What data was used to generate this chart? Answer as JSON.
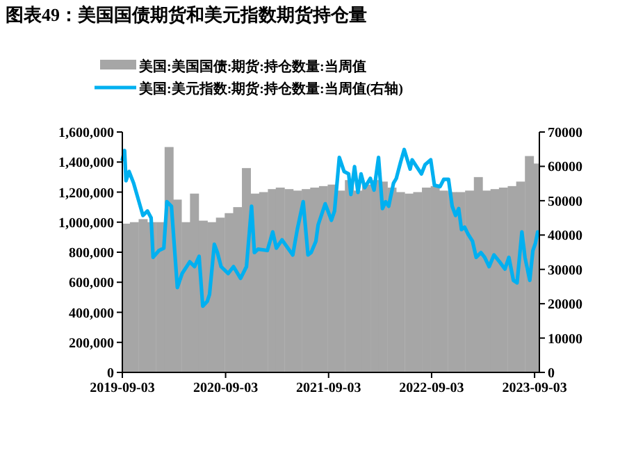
{
  "chart_data": {
    "type": "bar",
    "title": "图表49：美国国债期货和美元指数期货持仓量",
    "legend": "top",
    "grid": false,
    "xlim": [
      "2019-09-03",
      "2023-09-20"
    ],
    "xticks": [
      "2019-09-03",
      "2020-09-03",
      "2021-09-03",
      "2022-09-03",
      "2023-09-03"
    ],
    "ylim": [
      0,
      1600000
    ],
    "yticks": [
      {
        "value": 0,
        "label": "0"
      },
      {
        "value": 200000,
        "label": "200,000"
      },
      {
        "value": 400000,
        "label": "400,000"
      },
      {
        "value": 600000,
        "label": "600,000"
      },
      {
        "value": 800000,
        "label": "800,000"
      },
      {
        "value": 1000000,
        "label": "1,000,000"
      },
      {
        "value": 1200000,
        "label": "1,200,000"
      },
      {
        "value": 1400000,
        "label": "1,400,000"
      },
      {
        "value": 1600000,
        "label": "1,600,000"
      }
    ],
    "y2lim": [
      0,
      70000
    ],
    "y2ticks": [
      0,
      10000,
      20000,
      30000,
      40000,
      50000,
      60000,
      70000
    ],
    "series": [
      {
        "name": "美国:美国国债:期货:持仓数量:当周值",
        "color": "#a6a6a6",
        "x": [
          "2019-09-15",
          "2019-10-15",
          "2019-11-15",
          "2019-12-15",
          "2020-01-15",
          "2020-02-15",
          "2020-03-15",
          "2020-04-15",
          "2020-05-15",
          "2020-06-15",
          "2020-07-15",
          "2020-08-15",
          "2020-09-15",
          "2020-10-15",
          "2020-11-15",
          "2020-12-15",
          "2021-01-15",
          "2021-02-15",
          "2021-03-15",
          "2021-04-15",
          "2021-05-15",
          "2021-06-15",
          "2021-07-15",
          "2021-08-15",
          "2021-09-15",
          "2021-10-15",
          "2021-11-15",
          "2021-12-15",
          "2022-01-15",
          "2022-02-15",
          "2022-03-15",
          "2022-04-15",
          "2022-05-15",
          "2022-06-15",
          "2022-07-15",
          "2022-08-15",
          "2022-09-15",
          "2022-10-15",
          "2022-11-15",
          "2022-12-15",
          "2023-01-15",
          "2023-02-15",
          "2023-03-15",
          "2023-04-15",
          "2023-05-15",
          "2023-06-15",
          "2023-07-15",
          "2023-08-15",
          "2023-09-10"
        ],
        "values": [
          990000,
          1000000,
          1020000,
          1000000,
          1000000,
          1500000,
          1150000,
          1000000,
          1190000,
          1010000,
          1000000,
          1030000,
          1060000,
          1100000,
          1360000,
          1190000,
          1200000,
          1220000,
          1230000,
          1220000,
          1210000,
          1220000,
          1230000,
          1240000,
          1250000,
          1210000,
          1280000,
          1210000,
          1250000,
          1280000,
          1270000,
          1230000,
          1200000,
          1190000,
          1200000,
          1230000,
          1240000,
          1210000,
          1200000,
          1200000,
          1210000,
          1300000,
          1210000,
          1220000,
          1230000,
          1240000,
          1270000,
          1440000,
          1390000
        ]
      },
      {
        "name": "美国:美元指数:期货:持仓数量:当周值(右轴)",
        "type": "line",
        "axis": "y2",
        "color": "#00b0f0",
        "x": [
          "2019-09-03",
          "2019-09-11",
          "2019-09-16",
          "2019-09-27",
          "2019-10-13",
          "2019-11-15",
          "2019-12-01",
          "2019-12-14",
          "2019-12-21",
          "2020-01-11",
          "2020-01-28",
          "2020-02-08",
          "2020-02-24",
          "2020-03-16",
          "2020-04-02",
          "2020-04-29",
          "2020-05-16",
          "2020-06-01",
          "2020-06-14",
          "2020-06-30",
          "2020-07-08",
          "2020-07-25",
          "2020-08-05",
          "2020-08-18",
          "2020-09-12",
          "2020-10-01",
          "2020-10-26",
          "2020-11-16",
          "2020-12-04",
          "2020-12-14",
          "2020-12-27",
          "2021-01-29",
          "2021-02-17",
          "2021-03-02",
          "2021-03-22",
          "2021-04-29",
          "2021-05-15",
          "2021-06-05",
          "2021-06-22",
          "2021-07-03",
          "2021-07-20",
          "2021-07-28",
          "2021-08-22",
          "2021-09-13",
          "2021-09-24",
          "2021-10-11",
          "2021-10-28",
          "2021-11-13",
          "2021-11-21",
          "2021-12-04",
          "2021-12-16",
          "2021-12-27",
          "2022-01-09",
          "2022-01-29",
          "2022-02-11",
          "2022-02-27",
          "2022-03-13",
          "2022-03-24",
          "2022-04-04",
          "2022-04-21",
          "2022-05-01",
          "2022-05-16",
          "2022-05-29",
          "2022-06-09",
          "2022-06-19",
          "2022-06-26",
          "2022-07-12",
          "2022-07-29",
          "2022-08-11",
          "2022-08-31",
          "2022-09-13",
          "2022-10-03",
          "2022-10-16",
          "2022-11-02",
          "2022-11-15",
          "2022-11-27",
          "2022-12-08",
          "2022-12-18",
          "2022-12-29",
          "2023-01-10",
          "2023-01-26",
          "2023-02-08",
          "2023-02-25",
          "2023-03-10",
          "2023-03-26",
          "2023-04-12",
          "2023-05-02",
          "2023-05-21",
          "2023-06-04",
          "2023-06-20",
          "2023-07-03",
          "2023-07-20",
          "2023-07-31",
          "2023-08-17",
          "2023-08-28",
          "2023-09-06",
          "2023-09-14"
        ],
        "values": [
          62000,
          64600,
          55800,
          58500,
          55100,
          45700,
          47000,
          45000,
          33500,
          35500,
          36200,
          49700,
          48400,
          24700,
          28800,
          32200,
          30800,
          33800,
          19300,
          20700,
          22700,
          37300,
          34900,
          30800,
          28800,
          30800,
          27400,
          30800,
          48400,
          34900,
          35900,
          35500,
          40900,
          36200,
          38600,
          34200,
          41600,
          49700,
          34200,
          34900,
          38200,
          43000,
          49100,
          44300,
          47000,
          62600,
          58500,
          57800,
          51800,
          59900,
          52400,
          57800,
          53800,
          56500,
          53100,
          62600,
          47700,
          49700,
          48400,
          55100,
          56500,
          61200,
          64900,
          61900,
          59200,
          61900,
          59900,
          57800,
          60500,
          61900,
          54500,
          54100,
          56200,
          56200,
          48400,
          45700,
          47700,
          41600,
          42300,
          40300,
          38200,
          33500,
          34900,
          33500,
          30800,
          34200,
          32200,
          30100,
          33500,
          26800,
          26100,
          40900,
          33500,
          26800,
          35500,
          37600,
          40900
        ]
      }
    ]
  }
}
